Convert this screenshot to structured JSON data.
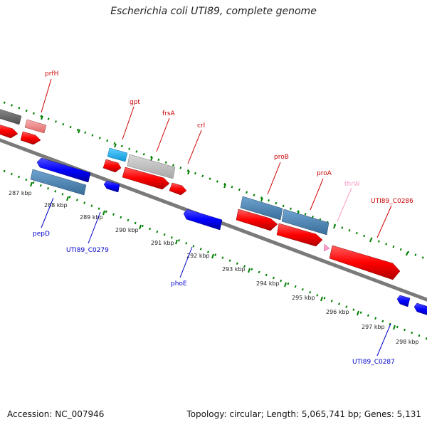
{
  "title": "Escherichia coli UTI89, complete genome",
  "accession": "Accession: NC_007946",
  "summary": "Topology: circular; Length: 5,065,741 bp; Genes: 5,131",
  "ticks": [
    "287 kbp",
    "288 kbp",
    "289 kbp",
    "290 kbp",
    "291 kbp",
    "292 kbp",
    "293 kbp",
    "294 kbp",
    "295 kbp",
    "296 kbp",
    "297 kbp",
    "298 kbp"
  ],
  "genes_top": [
    "prfH",
    "gpt",
    "frsA",
    "crl",
    "proB",
    "proA",
    "thrW",
    "UTI89_C0286"
  ],
  "genes_bottom": [
    "pepD",
    "UTI89_C0279",
    "phoE",
    "UTI89_C0287"
  ],
  "colors": {
    "forward_cds": "#ff0000",
    "reverse_cds": "#0000ff",
    "gene_forward": "#4682b4",
    "gene_grey": "#bfbfbf",
    "gene_cyan": "#1eb4f0",
    "gene_pink": "#f08080",
    "trna": "#ff9cc8",
    "backbone": "#808080",
    "tick": "#008000",
    "label_top": "#cc0000",
    "label_bottom": "#0000cc",
    "label_trna": "#ff9cc8"
  }
}
